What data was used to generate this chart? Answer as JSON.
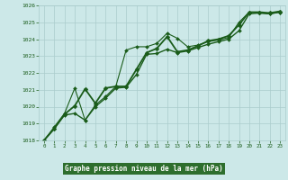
{
  "background_color": "#cce8e8",
  "plot_bg": "#cce8e8",
  "grid_color": "#aacccc",
  "line_color": "#1a5c1a",
  "marker_color": "#1a5c1a",
  "title": "Graphe pression niveau de la mer (hPa)",
  "title_color": "#1a5c1a",
  "title_bg": "#2d6e2d",
  "tick_color": "#1a5c1a",
  "ylim": [
    1018,
    1026
  ],
  "xlim": [
    -0.5,
    23.5
  ],
  "yticks": [
    1018,
    1019,
    1020,
    1021,
    1022,
    1023,
    1024,
    1025,
    1026
  ],
  "xticks": [
    0,
    1,
    2,
    3,
    4,
    5,
    6,
    7,
    8,
    9,
    10,
    11,
    12,
    13,
    14,
    15,
    16,
    17,
    18,
    19,
    20,
    21,
    22,
    23
  ],
  "series": [
    {
      "x": [
        0,
        1,
        2,
        3,
        4,
        5,
        6,
        7,
        8,
        9,
        10,
        11,
        12,
        13,
        14,
        15,
        16,
        17,
        18,
        19,
        20,
        21,
        22,
        23
      ],
      "y": [
        1018.0,
        1018.7,
        1019.5,
        1019.6,
        1019.2,
        1020.0,
        1020.5,
        1021.1,
        1021.15,
        1021.9,
        1023.1,
        1023.15,
        1023.4,
        1023.2,
        1023.3,
        1023.5,
        1023.7,
        1023.85,
        1024.0,
        1024.5,
        1025.5,
        1025.55,
        1025.5,
        1025.6
      ],
      "linestyle": "-",
      "linewidth": 1.0,
      "marker": "D",
      "markersize": 2.0
    },
    {
      "x": [
        0,
        1,
        2,
        3,
        4,
        5,
        6,
        7,
        8,
        9,
        10,
        11,
        12,
        13,
        14,
        15,
        16,
        17,
        18,
        19,
        20,
        21,
        22,
        23
      ],
      "y": [
        1018.0,
        1018.8,
        1019.6,
        1021.1,
        1019.2,
        1020.1,
        1020.6,
        1021.2,
        1023.35,
        1023.55,
        1023.55,
        1023.75,
        1024.35,
        1024.05,
        1023.55,
        1023.65,
        1023.85,
        1023.95,
        1024.1,
        1025.0,
        1025.6,
        1025.55,
        1025.5,
        1025.6
      ],
      "linestyle": "-",
      "linewidth": 0.8,
      "marker": "D",
      "markersize": 2.0
    },
    {
      "x": [
        0,
        1,
        2,
        3,
        4,
        5,
        6,
        7,
        8,
        9,
        10,
        11,
        12,
        13,
        14,
        15,
        16,
        17,
        18,
        19,
        20,
        21,
        22,
        23
      ],
      "y": [
        1018.0,
        1018.7,
        1019.55,
        1020.05,
        1021.05,
        1020.2,
        1021.1,
        1021.2,
        1021.2,
        1022.2,
        1023.2,
        1023.45,
        1024.15,
        1023.25,
        1023.35,
        1023.6,
        1023.9,
        1024.0,
        1024.2,
        1024.85,
        1025.6,
        1025.6,
        1025.55,
        1025.65
      ],
      "linestyle": "-",
      "linewidth": 1.3,
      "marker": "D",
      "markersize": 2.5
    }
  ]
}
